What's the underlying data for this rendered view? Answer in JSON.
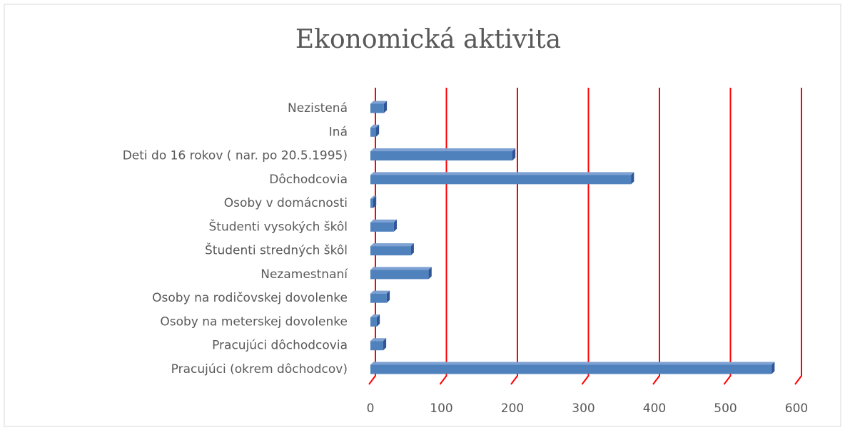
{
  "chart_data": {
    "type": "bar",
    "orientation": "horizontal",
    "title": "Ekonomická aktivita",
    "categories": [
      "Nezistená",
      "Iná",
      "Deti do 16 rokov ( nar. po  20.5.1995)",
      "Dôchodcovia",
      "Osoby v domácnosti",
      "Študenti vysokých škôl",
      "Študenti stredných škôl",
      "Nezamestnaní",
      "Osoby na rodičovskej dovolenke",
      "Osoby na meterskej dovolenke",
      "Pracujúci dôchodcovia",
      "Pracujúci (okrem dôchodcov)"
    ],
    "values": [
      19,
      8,
      200,
      367,
      4,
      33,
      57,
      82,
      23,
      9,
      18,
      565
    ],
    "color": "#4f81bd",
    "xlim": [
      0,
      600
    ],
    "xticks": [
      0,
      100,
      200,
      300,
      400,
      500,
      600
    ],
    "grid": true,
    "grid_color": "#ff0000"
  }
}
